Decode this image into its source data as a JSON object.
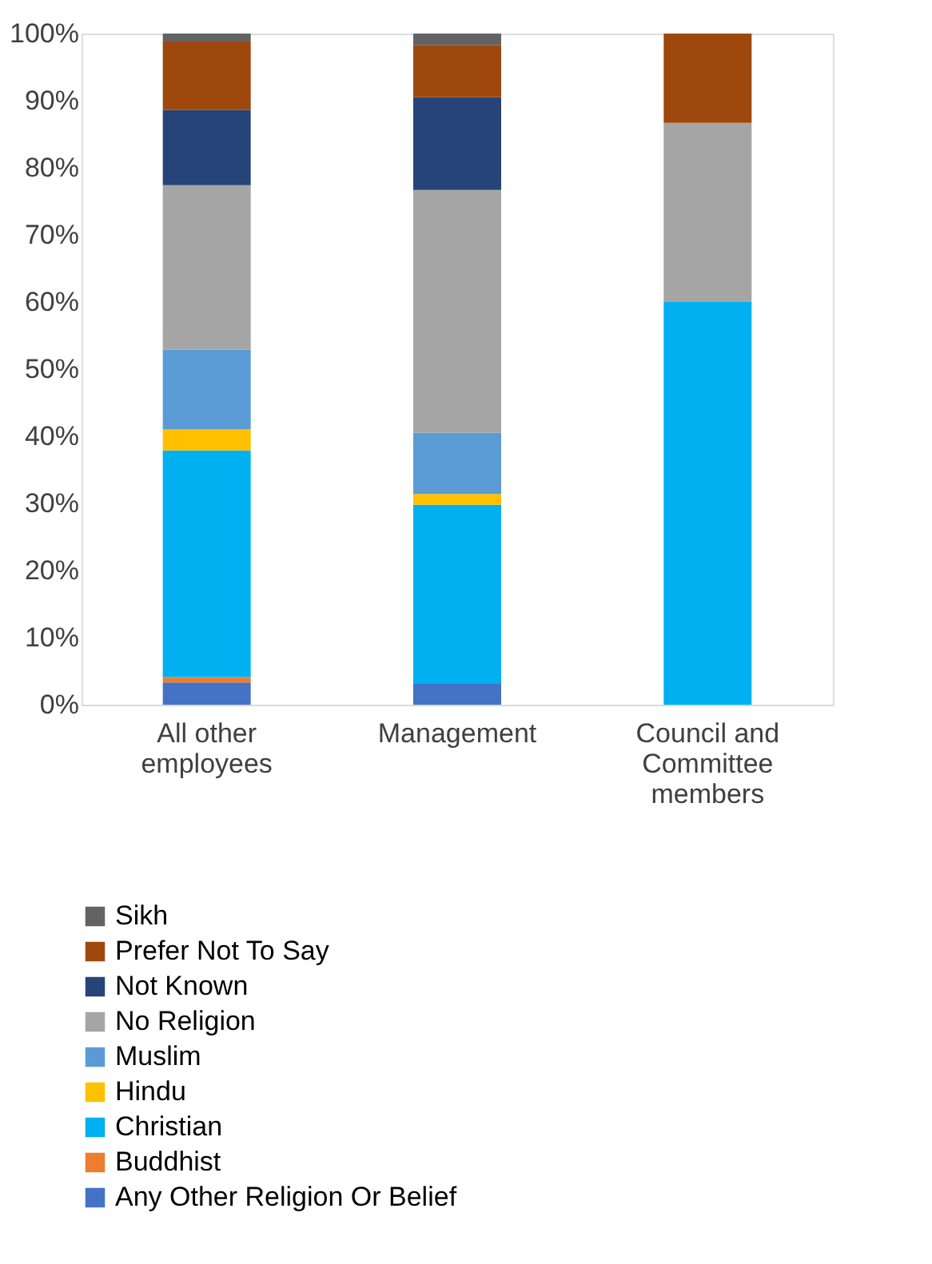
{
  "chart_data": {
    "type": "bar",
    "stacked": true,
    "categories": [
      "All other employees",
      "Management",
      "Council and Committee members"
    ],
    "series": [
      {
        "name": "Any Other Religion Or Belief",
        "color": "#4472c4",
        "values": [
          3.3,
          3.1,
          null
        ]
      },
      {
        "name": "Buddhist",
        "color": "#ed7d31",
        "values": [
          0.8,
          null,
          null
        ]
      },
      {
        "name": "Christian",
        "color": "#00b0f0",
        "values": [
          33.8,
          26.7,
          60.0
        ]
      },
      {
        "name": "Hindu",
        "color": "#ffc000",
        "values": [
          3.1,
          1.6,
          null
        ]
      },
      {
        "name": "Muslim",
        "color": "#5b9bd5",
        "values": [
          11.9,
          9.1,
          null
        ]
      },
      {
        "name": "No Religion",
        "color": "#a5a5a5",
        "values": [
          24.5,
          36.2,
          26.7
        ]
      },
      {
        "name": "Not Known",
        "color": "#264478",
        "values": [
          11.2,
          13.8,
          null
        ]
      },
      {
        "name": "Prefer Not To Say",
        "color": "#9e480e",
        "values": [
          10.2,
          7.8,
          13.3
        ]
      },
      {
        "name": "Sikh",
        "color": "#636363",
        "values": [
          1.2,
          1.7,
          null
        ]
      }
    ],
    "ylim": [
      0,
      100
    ],
    "yticks": [
      {
        "value": 0,
        "label": "0%"
      },
      {
        "value": 10,
        "label": "10%"
      },
      {
        "value": 20,
        "label": "20%"
      },
      {
        "value": 30,
        "label": "30%"
      },
      {
        "value": 40,
        "label": "40%"
      },
      {
        "value": 50,
        "label": "50%"
      },
      {
        "value": 60,
        "label": "60%"
      },
      {
        "value": 70,
        "label": "70%"
      },
      {
        "value": 80,
        "label": "80%"
      },
      {
        "value": 90,
        "label": "90%"
      },
      {
        "value": 100,
        "label": "100%"
      }
    ],
    "grid": false,
    "legend": "bottom"
  }
}
